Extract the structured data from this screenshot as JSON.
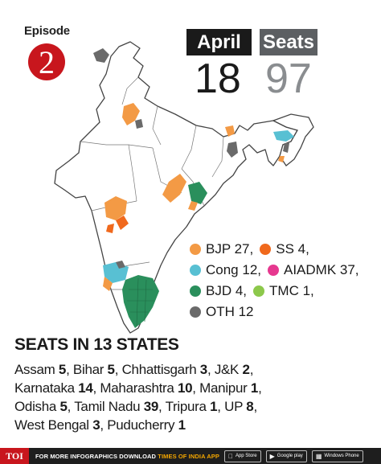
{
  "episode": {
    "label": "Episode",
    "number": "2"
  },
  "header": {
    "month_label": "April",
    "day": "18",
    "seats_label": "Seats",
    "seats_count": "97"
  },
  "colors": {
    "bjp": "#f39a45",
    "ss": "#f0691d",
    "cong": "#58c0d3",
    "aiadmk": "#e6388f",
    "bjd": "#2a8f5c",
    "tmc": "#8cc84b",
    "oth": "#6a6a6a",
    "map_fill": "#ffffff",
    "map_stroke": "#444444",
    "badge": "#c8161d"
  },
  "legend": [
    {
      "party": "BJP",
      "seats": "27",
      "label": "BJP 27,",
      "color_key": "bjp"
    },
    {
      "party": "SS",
      "seats": "4",
      "label": "SS 4,",
      "color_key": "ss"
    },
    {
      "party": "Cong",
      "seats": "12",
      "label": "Cong 12,",
      "color_key": "cong"
    },
    {
      "party": "AIADMK",
      "seats": "37",
      "label": "AIADMK 37,",
      "color_key": "aiadmk"
    },
    {
      "party": "BJD",
      "seats": "4",
      "label": "BJD 4,",
      "color_key": "bjd"
    },
    {
      "party": "TMC",
      "seats": "1",
      "label": "TMC 1,",
      "color_key": "tmc"
    },
    {
      "party": "OTH",
      "seats": "12",
      "label": "OTH 12",
      "color_key": "oth"
    }
  ],
  "seats_section": {
    "title": "SEATS IN 13 STATES",
    "states": [
      {
        "name": "Assam",
        "seats": "5"
      },
      {
        "name": "Bihar",
        "seats": "5"
      },
      {
        "name": "Chhattisgarh",
        "seats": "3"
      },
      {
        "name": "J&K",
        "seats": "2"
      },
      {
        "name": "Karnataka",
        "seats": "14"
      },
      {
        "name": "Maharashtra",
        "seats": "10"
      },
      {
        "name": "Manipur",
        "seats": "1"
      },
      {
        "name": "Odisha",
        "seats": "5"
      },
      {
        "name": "Tamil Nadu",
        "seats": "39"
      },
      {
        "name": "Tripura",
        "seats": "1"
      },
      {
        "name": "UP",
        "seats": "8"
      },
      {
        "name": "West Bengal",
        "seats": "3"
      },
      {
        "name": "Puducherry",
        "seats": "1"
      }
    ]
  },
  "footer": {
    "logo": "TOI",
    "text": "FOR MORE  INFOGRAPHICS DOWNLOAD",
    "app_name": "TIMES OF INDIA APP",
    "badges": [
      {
        "icon": "apple-icon",
        "label": "App Store"
      },
      {
        "icon": "play-icon",
        "label": "Google play"
      },
      {
        "icon": "windows-icon",
        "label": "Windows Phone"
      }
    ]
  }
}
